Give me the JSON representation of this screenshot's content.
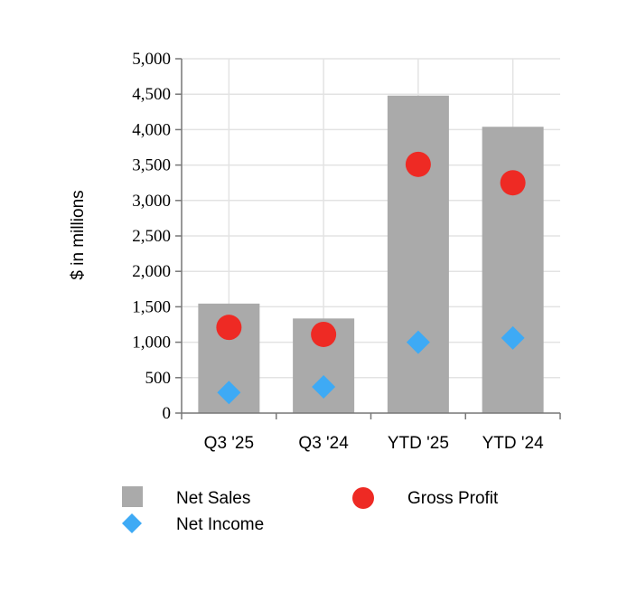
{
  "chart_data": {
    "type": "bar",
    "categories": [
      "Q3 '25",
      "Q3 '24",
      "YTD '25",
      "YTD '24"
    ],
    "ylabel": "$ in millions",
    "ylim": [
      0,
      5000
    ],
    "yticks": [
      "0",
      "500",
      "1,000",
      "1,500",
      "2,000",
      "2,500",
      "3,000",
      "3,500",
      "4,000",
      "4,500",
      "5,000"
    ],
    "ytick_values": [
      0,
      500,
      1000,
      1500,
      2000,
      2500,
      3000,
      3500,
      4000,
      4500,
      5000
    ],
    "grid": true,
    "legend_position": "bottom",
    "series": [
      {
        "name": "Net Sales",
        "type": "bar",
        "values": [
          1545,
          1335,
          4480,
          4040
        ],
        "color": "#aaaaaa"
      },
      {
        "name": "Gross Profit",
        "type": "scatter",
        "marker": "circle",
        "values": [
          1210,
          1110,
          3510,
          3250
        ],
        "color": "#ee2a24"
      },
      {
        "name": "Net Income",
        "type": "scatter",
        "marker": "diamond",
        "values": [
          290,
          370,
          1000,
          1060
        ],
        "color": "#3eaaf5"
      }
    ]
  }
}
